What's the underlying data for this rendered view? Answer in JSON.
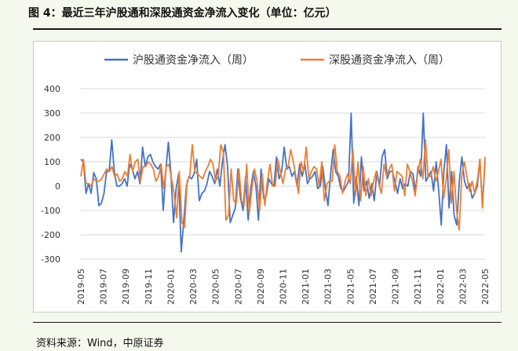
{
  "header": {
    "title": "图 4：最近三年沪股通和深股通资金净流入变化（单位：亿元）"
  },
  "footer": {
    "source": "资料来源：Wind，中原证券"
  },
  "colors": {
    "hgt": "#4472c4",
    "sgt": "#ed7d31",
    "grid": "#d9d9d9",
    "background": "#f5f8ec"
  },
  "chart_data": {
    "type": "line",
    "title": "",
    "ylim": [
      -300,
      400
    ],
    "yticks": [
      -300,
      -200,
      -100,
      0,
      100,
      200,
      300,
      400
    ],
    "xticks": [
      "2019-05",
      "2019-07",
      "2019-09",
      "2019-11",
      "2020-01",
      "2020-03",
      "2020-05",
      "2020-07",
      "2020-09",
      "2020-11",
      "2021-01",
      "2021-03",
      "2021-05",
      "2021-07",
      "2021-09",
      "2021-11",
      "2022-01",
      "2022-03",
      "2022-05"
    ],
    "grid": "horizontal",
    "legend_position": "top",
    "series": [
      {
        "name": "沪股通资金净流入（周）",
        "color": "#4472c4",
        "values": [
          110,
          100,
          -30,
          10,
          -30,
          55,
          30,
          -80,
          -70,
          -30,
          60,
          60,
          190,
          60,
          0,
          0,
          10,
          30,
          0,
          90,
          70,
          30,
          60,
          10,
          160,
          80,
          120,
          130,
          100,
          80,
          70,
          90,
          -100,
          60,
          180,
          50,
          -150,
          -10,
          50,
          -270,
          -140,
          0,
          40,
          30,
          50,
          110,
          -60,
          -30,
          -20,
          10,
          60,
          40,
          10,
          70,
          0,
          100,
          170,
          80,
          -150,
          -120,
          -90,
          70,
          -50,
          -100,
          40,
          -140,
          -10,
          60,
          0,
          -140,
          70,
          -50,
          -40,
          30,
          10,
          0,
          120,
          30,
          60,
          160,
          70,
          80,
          40,
          60,
          0,
          90,
          40,
          90,
          10,
          30,
          40,
          60,
          -10,
          0,
          80,
          -10,
          -80,
          50,
          150,
          60,
          40,
          -10,
          -20,
          0,
          20,
          300,
          -70,
          40,
          -80,
          120,
          -20,
          20,
          -50,
          10,
          -60,
          60,
          0,
          120,
          150,
          30,
          60,
          60,
          20,
          -30,
          30,
          -10,
          10,
          0,
          60,
          50,
          -20,
          80,
          40,
          300,
          20,
          40,
          60,
          -20,
          100,
          -20,
          -160,
          60,
          170,
          -90,
          60,
          -120,
          -160,
          20,
          120,
          20,
          -10,
          10,
          -50,
          -30,
          0,
          110,
          -80,
          100
        ],
        "note": "weekly values"
      },
      {
        "name": "深股通资金净流入（周）",
        "color": "#ed7d31",
        "values": [
          40,
          110,
          10,
          10,
          0,
          30,
          20,
          20,
          30,
          50,
          70,
          60,
          80,
          40,
          50,
          20,
          30,
          60,
          40,
          130,
          60,
          100,
          110,
          20,
          80,
          80,
          100,
          90,
          70,
          20,
          40,
          90,
          -10,
          80,
          90,
          30,
          -30,
          -130,
          60,
          -150,
          -170,
          20,
          40,
          170,
          60,
          50,
          40,
          30,
          60,
          80,
          110,
          90,
          20,
          40,
          170,
          140,
          -140,
          -120,
          70,
          -60,
          -70,
          70,
          -60,
          -80,
          90,
          -110,
          -10,
          70,
          20,
          -100,
          50,
          -80,
          20,
          90,
          0,
          0,
          110,
          60,
          10,
          70,
          80,
          150,
          100,
          40,
          -30,
          100,
          60,
          160,
          30,
          60,
          80,
          70,
          0,
          100,
          -60,
          10,
          20,
          20,
          170,
          60,
          40,
          -30,
          20,
          50,
          10,
          150,
          -40,
          100,
          -60,
          80,
          -40,
          30,
          -40,
          20,
          60,
          10,
          -30,
          90,
          40,
          70,
          90,
          -20,
          60,
          50,
          40,
          -40,
          90,
          60,
          20,
          -40,
          50,
          110,
          30,
          190,
          40,
          40,
          80,
          20,
          60,
          110,
          -50,
          30,
          150,
          -70,
          60,
          -100,
          -180,
          40,
          100,
          40,
          -20,
          20,
          -30,
          20,
          110,
          -90,
          120
        ],
        "note": "weekly values"
      }
    ]
  }
}
